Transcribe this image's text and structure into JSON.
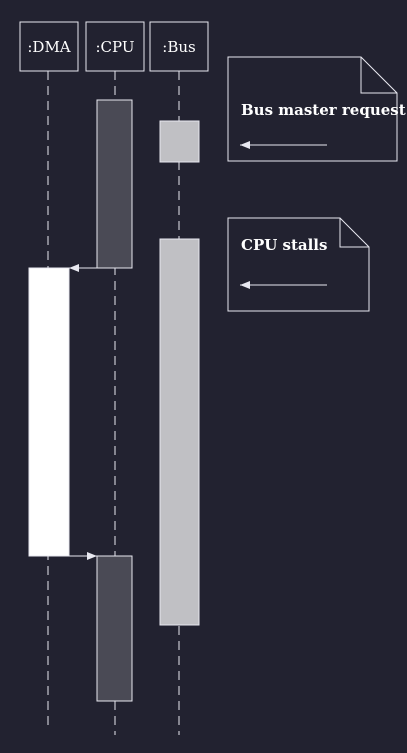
{
  "colors": {
    "background": "#222230",
    "line": "#e8e8f0",
    "cpu_activation": "#4a4a55",
    "bus_activation": "#c0c0c4",
    "dma_activation": "#ffffff"
  },
  "lifelines": [
    {
      "id": "dma",
      "label": ":DMA"
    },
    {
      "id": "cpu",
      "label": ":CPU"
    },
    {
      "id": "bus",
      "label": ":Bus"
    }
  ],
  "notes": [
    {
      "id": "bus-master-request",
      "text": "Bus master request"
    },
    {
      "id": "cpu-stalls",
      "text": "CPU stalls"
    }
  ],
  "messages": [
    {
      "id": "cpu-to-dma",
      "from": "cpu",
      "to": "dma"
    },
    {
      "id": "dma-to-cpu",
      "from": "dma",
      "to": "cpu"
    }
  ]
}
